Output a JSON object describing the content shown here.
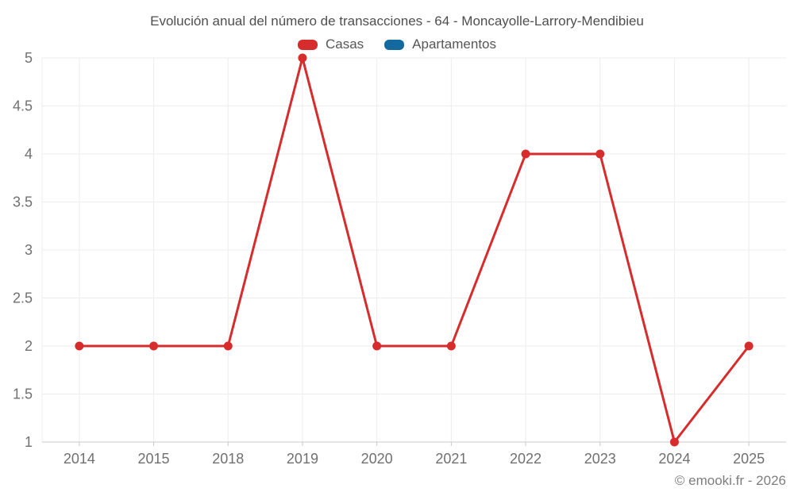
{
  "chart_data": {
    "type": "line",
    "title": "Evolución anual del número de transacciones - 64 - Moncayolle-Larrory-Mendibieu",
    "categories": [
      "2014",
      "2015",
      "2018",
      "2019",
      "2020",
      "2021",
      "2022",
      "2023",
      "2024",
      "2025"
    ],
    "series": [
      {
        "name": "Casas",
        "color": "#d62c2c",
        "values": [
          2,
          2,
          2,
          5,
          2,
          2,
          4,
          4,
          1,
          2
        ]
      },
      {
        "name": "Apartamentos",
        "color": "#146a9f",
        "values": []
      }
    ],
    "xlabel": "",
    "ylabel": "",
    "ylim": [
      1,
      5
    ],
    "yticks": [
      1,
      1.5,
      2,
      2.5,
      3,
      3.5,
      4,
      4.5,
      5
    ],
    "grid": true,
    "legend_position": "top",
    "gridline_color": "#ededed",
    "axis_color": "#c9c9c9",
    "label_color": "#707070"
  },
  "watermark": "© emooki.fr - 2026"
}
